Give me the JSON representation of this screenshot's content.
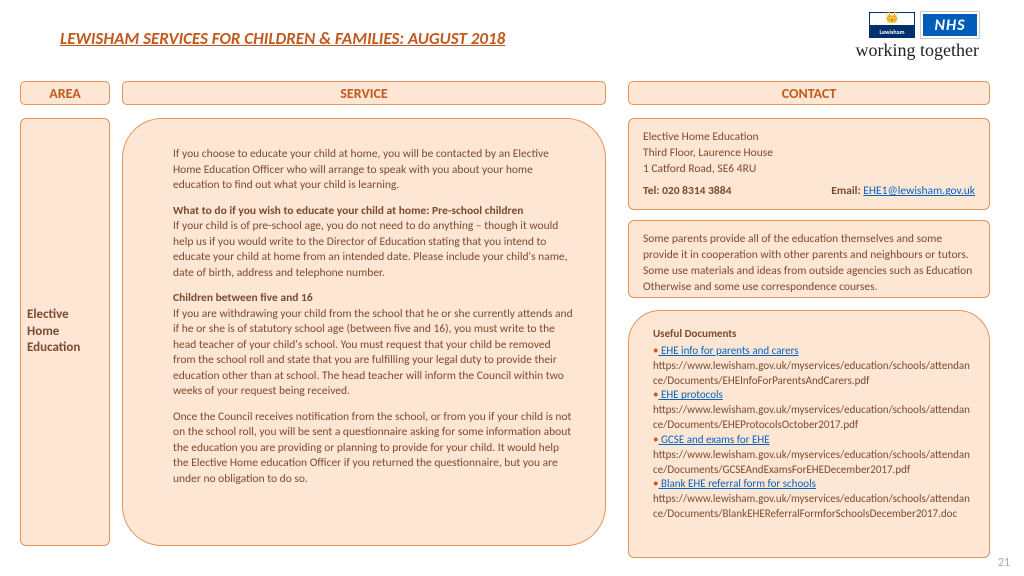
{
  "title": "LEWISHAM SERVICES FOR CHILDREN & FAMILIES: AUGUST 2018",
  "logos": {
    "lewisham_label": "Lewisham",
    "nhs_label": "NHS",
    "tagline": "working together"
  },
  "headers": {
    "area": "AREA",
    "service": "SERVICE",
    "contact": "CONTACT"
  },
  "area_label": "Elective Home Education",
  "service": {
    "p1": "If you choose to educate your child at home, you will be contacted by an Elective Home Education Officer who will arrange to speak with you about your home education to find out what your child is learning.",
    "sub1": "What to do if you wish to educate your child at home: Pre-school children",
    "p2": "If your child is of pre-school age, you do not need to do anything – though it would help us if you would write to the Director of Education stating that you intend to educate your child at home from an intended date. Please include your child's name, date of birth, address and telephone number.",
    "sub2": "Children between five and 16",
    "p3": "If you are withdrawing your child from the school that he or she currently attends and if he or she is of statutory school age (between five and 16), you must write to the head teacher of your child's school. You must request that your child be removed from the school roll and state that you are fulfilling your legal duty to provide their education other than at school. The head teacher will inform the Council within two weeks of your request being received.",
    "p4": "Once the Council receives notification from the school, or from you if your child is not on the school roll, you will be sent a questionnaire asking for some information about the education you are providing or planning to provide for your child. It would help the Elective Home education Officer if you returned the questionnaire, but you are under no obligation to do so."
  },
  "contact1": {
    "name": "Elective Home Education",
    "addr1": "Third Floor, Laurence House",
    "addr2": "1 Catford Road, SE6 4RU",
    "tel_label": "Tel: 020 8314 3884",
    "email_label": "Email: ",
    "email": "EHE1@lewisham.gov.uk"
  },
  "contact2": "Some parents provide all of the education themselves and some provide it in cooperation with other parents and neighbours or tutors. Some use materials and ideas from outside agencies such as Education Otherwise and some use correspondence courses.",
  "docs": {
    "heading": "Useful Documents",
    "items": [
      {
        "title": " EHE info for parents and carers",
        "url": "https://www.lewisham.gov.uk/myservices/education/schools/attendance/Documents/EHEInfoForParentsAndCarers.pdf"
      },
      {
        "title": " EHE protocols",
        "url": "https://www.lewisham.gov.uk/myservices/education/schools/attendance/Documents/EHEProtocolsOctober2017.pdf"
      },
      {
        "title": " GCSE and exams for EHE",
        "url": "https://www.lewisham.gov.uk/myservices/education/schools/attendance/Documents/GCSEAndExamsForEHEDecember2017.pdf"
      },
      {
        "title": " Blank EHE referral form for schools",
        "url": "https://www.lewisham.gov.uk/myservices/education/schools/attendance/Documents/BlankEHEReferralFormforSchoolsDecember2017.doc"
      }
    ]
  },
  "page_number": "21",
  "colors": {
    "panel_bg": "#fde7d4",
    "panel_border": "#e8935a",
    "accent_text": "#c05a1e",
    "body_text": "#7b4a2e",
    "link": "#0563c1"
  }
}
